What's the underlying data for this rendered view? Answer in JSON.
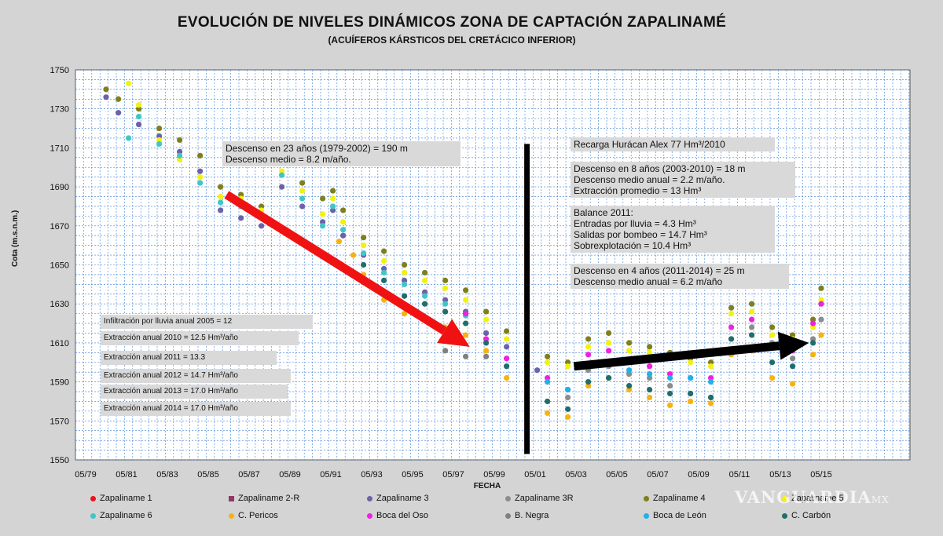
{
  "chart_data": {
    "type": "scatter",
    "title": "EVOLUCIÓN DE NIVELES DINÁMICOS ZONA DE CAPTACIÓN ZAPALINAMÉ",
    "subtitle": "(ACUÍFEROS KÁRSTICOS DEL CRETÁCICO INFERIOR)",
    "xlabel": "FECHA",
    "ylabel": "Cota (m.s.n.m.)",
    "ylim": [
      1550,
      1750
    ],
    "y_ticks": [
      "1550",
      "1570",
      "1590",
      "1610",
      "1630",
      "1650",
      "1670",
      "1690",
      "1710",
      "1730",
      "1750"
    ],
    "x_ticks": [
      "05/79",
      "05/81",
      "05/83",
      "05/85",
      "05/87",
      "05/89",
      "05/91",
      "05/93",
      "05/95",
      "05/97",
      "05/99",
      "05/01",
      "05/03",
      "05/05",
      "05/07",
      "05/09",
      "05/11",
      "05/13",
      "05/15"
    ],
    "grid": true,
    "legend_position": "bottom",
    "series": [
      {
        "name": "Zapaliname 1",
        "color": "#e8131b",
        "marker": "circle",
        "x": [],
        "y": []
      },
      {
        "name": "Zapaliname 2-R",
        "color": "#93375f",
        "marker": "square",
        "x": [],
        "y": []
      },
      {
        "name": "Zapaliname 3",
        "color": "#6b62a8",
        "marker": "circle",
        "x": [
          1980.4,
          1981.0,
          1982.0,
          1983.0,
          1984.0,
          1985.0,
          1986.0,
          1987.0,
          1988.0,
          1989.0,
          1990.0,
          1991.0,
          1991.5,
          1992.0,
          1993.0,
          1994.0,
          1995.0,
          1996.0,
          1997.0,
          1998.0,
          1999.0,
          2000.0,
          2001.0,
          2001.5
        ],
        "y": [
          1736,
          1728,
          1722,
          1716,
          1708,
          1698,
          1678,
          1674,
          1670,
          1690,
          1680,
          1672,
          1678,
          1665,
          1655,
          1648,
          1642,
          1636,
          1632,
          1626,
          1615,
          1608,
          1600,
          1596
        ]
      },
      {
        "name": "Zapaliname 3R",
        "color": "#8c8c8c",
        "marker": "circle",
        "x": [
          2003.0,
          2004.0,
          2005.0,
          2006.0,
          2007.0,
          2008.0,
          2009.0,
          2010.0,
          2011.0,
          2012.0,
          2013.0,
          2014.0,
          2015.0,
          2015.4
        ],
        "y": [
          1582,
          1596,
          1598,
          1594,
          1592,
          1588,
          1584,
          1582,
          1612,
          1618,
          1610,
          1602,
          1612,
          1622
        ]
      },
      {
        "name": "Zapaliname 4",
        "color": "#7f7f1d",
        "marker": "circle",
        "x": [
          1980.4,
          1981.0,
          1982.0,
          1983.0,
          1984.0,
          1985.0,
          1986.0,
          1987.0,
          1988.0,
          1989.0,
          1990.0,
          1991.0,
          1991.5,
          1992.0,
          1993.0,
          1994.0,
          1995.0,
          1996.0,
          1997.0,
          1998.0,
          1999.0,
          2000.0,
          2001.0,
          2002.0,
          2003.0,
          2004.0,
          2005.0,
          2006.0,
          2007.0,
          2008.0,
          2009.0,
          2010.0,
          2011.0,
          2012.0,
          2013.0,
          2014.0,
          2015.0,
          2015.4
        ],
        "y": [
          1740,
          1735,
          1730,
          1720,
          1714,
          1706,
          1690,
          1686,
          1680,
          1702,
          1692,
          1684,
          1688,
          1678,
          1664,
          1657,
          1650,
          1646,
          1642,
          1637,
          1626,
          1616,
          1610,
          1603,
          1600,
          1612,
          1615,
          1610,
          1608,
          1605,
          1602,
          1600,
          1628,
          1630,
          1618,
          1614,
          1622,
          1638
        ]
      },
      {
        "name": "Zapaliname 5",
        "color": "#f2f20f",
        "marker": "circle",
        "x": [
          1981.5,
          1982.0,
          1983.0,
          1984.0,
          1985.0,
          1986.0,
          1987.0,
          1988.0,
          1989.0,
          1990.0,
          1991.0,
          1991.5,
          1992.0,
          1993.0,
          1994.0,
          1995.0,
          1996.0,
          1997.0,
          1998.0,
          1999.0,
          2000.0,
          2001.0,
          2002.0,
          2003.0,
          2004.0,
          2005.0,
          2006.0,
          2007.0,
          2008.0,
          2009.0,
          2010.0,
          2011.0,
          2012.0,
          2013.0,
          2014.0,
          2015.0,
          2015.4
        ],
        "y": [
          1743,
          1732,
          1714,
          1704,
          1695,
          1685,
          1684,
          1678,
          1698,
          1688,
          1676,
          1684,
          1672,
          1660,
          1652,
          1646,
          1642,
          1638,
          1632,
          1622,
          1612,
          1606,
          1600,
          1598,
          1608,
          1610,
          1606,
          1605,
          1603,
          1600,
          1598,
          1625,
          1626,
          1614,
          1612,
          1618,
          1632
        ]
      },
      {
        "name": "Zapaliname 6",
        "color": "#3fc6c8",
        "marker": "circle",
        "x": [
          1981.5,
          1982.0,
          1983.0,
          1984.0,
          1985.0,
          1986.0,
          1987.0,
          1988.0,
          1989.0,
          1990.0,
          1991.0,
          1991.5,
          1992.0,
          1993.0,
          1994.0,
          1995.0,
          1996.0,
          1997.0,
          1998.0
        ],
        "y": [
          1715,
          1726,
          1712,
          1706,
          1692,
          1682,
          1680,
          1674,
          1696,
          1684,
          1670,
          1680,
          1668,
          1656,
          1646,
          1640,
          1634,
          1630,
          1624
        ]
      },
      {
        "name": "C. Pericos",
        "color": "#f5b311",
        "marker": "circle",
        "x": [
          1991.8,
          1992.5,
          1993.0,
          1994.0,
          1995.0,
          1996.0,
          1997.0,
          1998.0,
          1999.0,
          2000.0,
          2001.0,
          2002.0,
          2003.0,
          2004.0,
          2005.0,
          2006.0,
          2007.0,
          2008.0,
          2009.0,
          2010.0,
          2011.0,
          2012.0,
          2013.0,
          2014.0,
          2015.0,
          2015.4
        ],
        "y": [
          1662,
          1655,
          1645,
          1632,
          1625,
          1622,
          1618,
          1614,
          1606,
          1592,
          1582,
          1574,
          1572,
          1588,
          1592,
          1586,
          1582,
          1578,
          1580,
          1579,
          1604,
          1606,
          1592,
          1589,
          1604,
          1614
        ]
      },
      {
        "name": "Boca del Oso",
        "color": "#f01fe3",
        "marker": "circle",
        "x": [
          1998.0,
          1999.0,
          2000.0,
          2001.0,
          2002.0,
          2003.0,
          2004.0,
          2005.0,
          2006.0,
          2007.0,
          2008.0,
          2009.0,
          2010.0,
          2011.0,
          2012.0,
          2013.0,
          2014.0,
          2015.0,
          2015.4
        ],
        "y": [
          1625,
          1612,
          1602,
          1598,
          1592,
          1586,
          1604,
          1606,
          1600,
          1598,
          1594,
          1592,
          1592,
          1618,
          1622,
          1608,
          1606,
          1620,
          1630
        ]
      },
      {
        "name": "B. Negra",
        "color": "#808080",
        "marker": "circle",
        "x": [
          1997.0,
          1998.0,
          1999.0
        ],
        "y": [
          1606,
          1603,
          1603
        ]
      },
      {
        "name": "Boca de León",
        "color": "#1fb2e6",
        "marker": "circle",
        "x": [
          2001.0,
          2002.0,
          2003.0,
          2004.0,
          2005.0,
          2006.0,
          2007.0,
          2008.0,
          2009.0,
          2010.0
        ],
        "y": [
          1600,
          1590,
          1586,
          1598,
          1600,
          1596,
          1594,
          1592,
          1592,
          1590
        ]
      },
      {
        "name": "C. Carbón",
        "color": "#1f6e6c",
        "marker": "circle",
        "x": [
          1993.0,
          1994.0,
          1995.0,
          1996.0,
          1997.0,
          1998.0,
          1999.0,
          2000.0,
          2001.0,
          2002.0,
          2003.0,
          2004.0,
          2005.0,
          2006.0,
          2007.0,
          2008.0,
          2009.0,
          2010.0,
          2011.0,
          2012.0,
          2013.0,
          2014.0,
          2015.0
        ],
        "y": [
          1650,
          1642,
          1634,
          1630,
          1626,
          1620,
          1610,
          1598,
          1590,
          1580,
          1576,
          1590,
          1592,
          1588,
          1586,
          1584,
          1584,
          1582,
          1612,
          1614,
          1600,
          1598,
          1610
        ]
      }
    ],
    "annotations": [
      {
        "text": "Descenso en 23 años (1979-2002) = 190 m\nDescenso medio = 8.2 m/año."
      },
      {
        "text": "Recarga Hurácan Alex 77 Hm³/2010"
      },
      {
        "text": "Descenso en 8 años (2003-2010) = 18 m\nDescenso medio anual = 2.2 m/año.\nExtracción promedio = 13 Hm³"
      },
      {
        "text": "Balance 2011:\nEntradas por lluvia = 4.3 Hm³\nSalidas por bombeo = 14.7 Hm³\nSobrexplotación = 10.4 Hm³"
      },
      {
        "text": "Descenso en 4 años (2011-2014) = 25 m\nDescenso medio anual = 6.2 m/año"
      },
      {
        "text": "Infiltración por lluvia anual  2005 = 12"
      },
      {
        "text": "Extracción anual  2010 = 12.5 Hm³/año"
      },
      {
        "text": "Extracción anual  2011 =  13.3"
      },
      {
        "text": "Extracción anual  2012 = 14.7 Hm³/año"
      },
      {
        "text": "Extracción anual 2013 = 17.0 Hm³/año"
      },
      {
        "text": "Extracción anual 2014 = 17.0 Hm³/año"
      }
    ],
    "arrows": [
      {
        "color": "#f01212",
        "from": [
          1986.3,
          1686
        ],
        "to": [
          1998.2,
          1608
        ]
      },
      {
        "color": "#000000",
        "from": [
          2003.3,
          1598
        ],
        "to": [
          2014.8,
          1610
        ]
      }
    ],
    "vertical_line": {
      "x": 2001.0,
      "y_from": 1553,
      "y_to": 1712,
      "color": "#000000"
    }
  },
  "watermark": "VANGUARDIA",
  "watermark_suffix": "MX"
}
